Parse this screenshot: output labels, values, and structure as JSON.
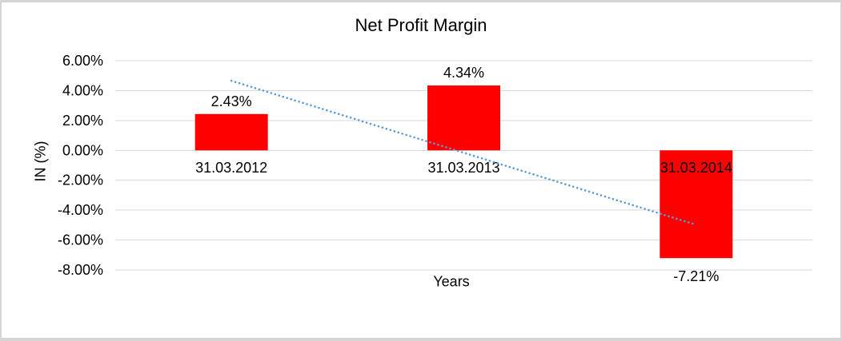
{
  "chart_data": {
    "type": "bar",
    "title": "Net Profit Margin",
    "xlabel": "Years",
    "ylabel": "IN (%)",
    "categories": [
      "31.03.2012",
      "31.03.2013",
      "31.03.2014"
    ],
    "values": [
      2.43,
      4.34,
      -7.21
    ],
    "data_labels": [
      "2.43%",
      "4.34%",
      "-7.21%"
    ],
    "y_ticks": [
      {
        "value": 6,
        "label": "6.00%"
      },
      {
        "value": 4,
        "label": "4.00%"
      },
      {
        "value": 2,
        "label": "2.00%"
      },
      {
        "value": 0,
        "label": "0.00%"
      },
      {
        "value": -2,
        "label": "-2.00%"
      },
      {
        "value": -4,
        "label": "-4.00%"
      },
      {
        "value": -6,
        "label": "-6.00%"
      },
      {
        "value": -8,
        "label": "-8.00%"
      }
    ],
    "ylim": [
      -8,
      6
    ],
    "grid": true,
    "legend": "none",
    "bar_color": "#ff0000",
    "gridline_color": "#d9d9d9",
    "text_color": "#000000",
    "trendline": {
      "style": "dotted",
      "color": "#5b9bd5",
      "start": {
        "category_index": 0,
        "value": 4.66
      },
      "end": {
        "category_index": 2,
        "value": -4.98
      }
    }
  }
}
